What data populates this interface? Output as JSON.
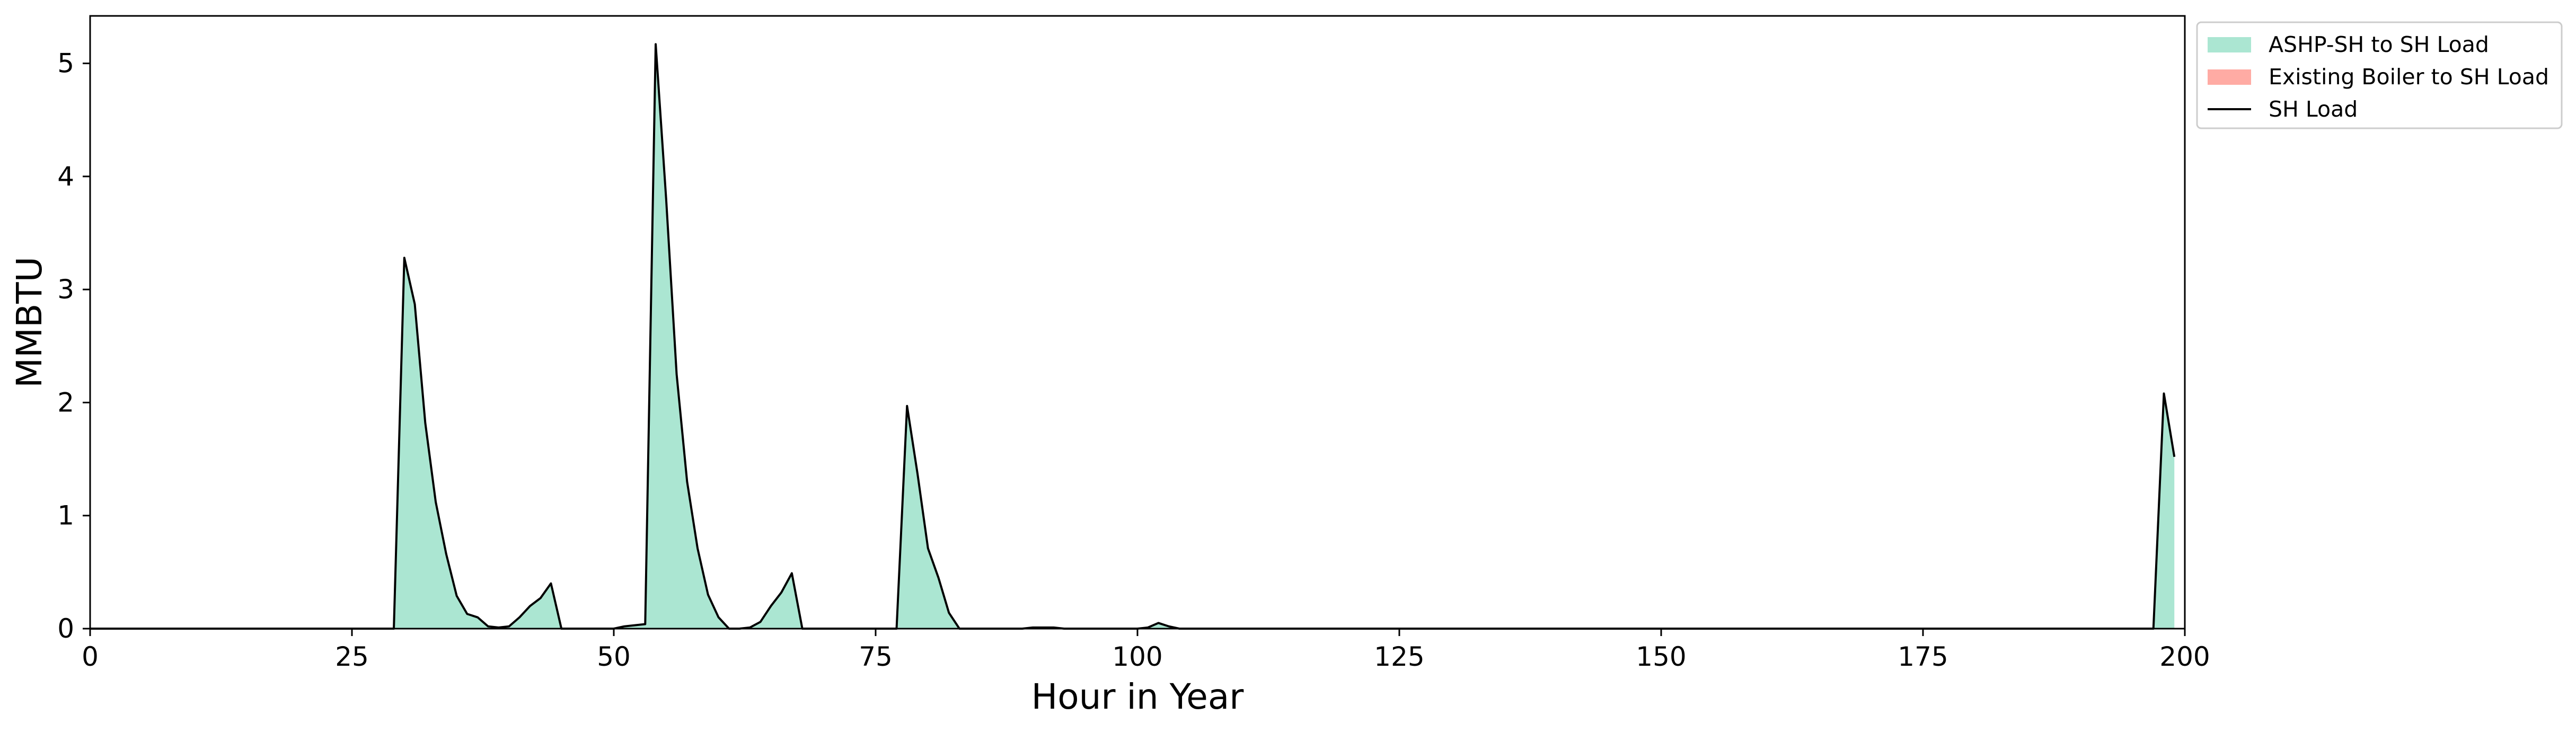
{
  "chart_data": {
    "type": "area",
    "xlabel": "Hour in Year",
    "ylabel": "MMBTU",
    "xlim": [
      0,
      200
    ],
    "ylim": [
      0,
      5.42
    ],
    "xticks": [
      0,
      25,
      50,
      75,
      100,
      125,
      150,
      175,
      200
    ],
    "yticks": [
      0,
      1,
      2,
      3,
      4,
      5
    ],
    "grid": false,
    "legend_position": "outside top-right",
    "colors": {
      "ashp_fill": "#abe6d2",
      "boiler_fill": "#ffaba4",
      "load_line": "#000000"
    },
    "series": [
      {
        "name": "ASHP-SH to SH Load",
        "kind": "area",
        "x": [
          0,
          29,
          30,
          31,
          32,
          33,
          34,
          35,
          36,
          37,
          38,
          39,
          40,
          41,
          42,
          43,
          44,
          45,
          46,
          49,
          50,
          51,
          52,
          53,
          54,
          55,
          56,
          57,
          58,
          59,
          60,
          61,
          62,
          63,
          64,
          65,
          66,
          67,
          68,
          69,
          70,
          76,
          77,
          78,
          79,
          80,
          81,
          82,
          83,
          84,
          89,
          90,
          91,
          92,
          93,
          99,
          100,
          101,
          102,
          103,
          104,
          105,
          196,
          197,
          198,
          199
        ],
        "y": [
          0,
          0,
          3.28,
          2.87,
          1.82,
          1.12,
          0.66,
          0.29,
          0.13,
          0.1,
          0.02,
          0.01,
          0.02,
          0.1,
          0.2,
          0.27,
          0.4,
          0,
          0,
          0,
          0,
          0.02,
          0.03,
          0.04,
          5.17,
          3.8,
          2.25,
          1.3,
          0.71,
          0.3,
          0.1,
          0,
          0,
          0.01,
          0.06,
          0.2,
          0.32,
          0.49,
          0,
          0,
          0,
          0,
          0,
          1.97,
          1.37,
          0.71,
          0.45,
          0.14,
          0,
          0,
          0,
          0.01,
          0.01,
          0.01,
          0,
          0,
          0,
          0.01,
          0.05,
          0.02,
          0,
          0,
          0,
          0,
          2.08,
          1.52
        ]
      },
      {
        "name": "Existing Boiler to SH Load",
        "kind": "area",
        "x": [
          0,
          199
        ],
        "y": [
          0,
          0
        ]
      },
      {
        "name": "SH Load",
        "kind": "line",
        "x": [
          0,
          29,
          30,
          31,
          32,
          33,
          34,
          35,
          36,
          37,
          38,
          39,
          40,
          41,
          42,
          43,
          44,
          45,
          46,
          49,
          50,
          51,
          52,
          53,
          54,
          55,
          56,
          57,
          58,
          59,
          60,
          61,
          62,
          63,
          64,
          65,
          66,
          67,
          68,
          69,
          70,
          76,
          77,
          78,
          79,
          80,
          81,
          82,
          83,
          84,
          89,
          90,
          91,
          92,
          93,
          99,
          100,
          101,
          102,
          103,
          104,
          105,
          196,
          197,
          198,
          199
        ],
        "y": [
          0,
          0,
          3.28,
          2.87,
          1.82,
          1.12,
          0.66,
          0.29,
          0.13,
          0.1,
          0.02,
          0.01,
          0.02,
          0.1,
          0.2,
          0.27,
          0.4,
          0,
          0,
          0,
          0,
          0.02,
          0.03,
          0.04,
          5.17,
          3.8,
          2.25,
          1.3,
          0.71,
          0.3,
          0.1,
          0,
          0,
          0.01,
          0.06,
          0.2,
          0.32,
          0.49,
          0,
          0,
          0,
          0,
          0,
          1.97,
          1.37,
          0.71,
          0.45,
          0.14,
          0,
          0,
          0,
          0.01,
          0.01,
          0.01,
          0,
          0,
          0,
          0.01,
          0.05,
          0.02,
          0,
          0,
          0,
          0,
          2.08,
          1.52
        ]
      }
    ]
  }
}
